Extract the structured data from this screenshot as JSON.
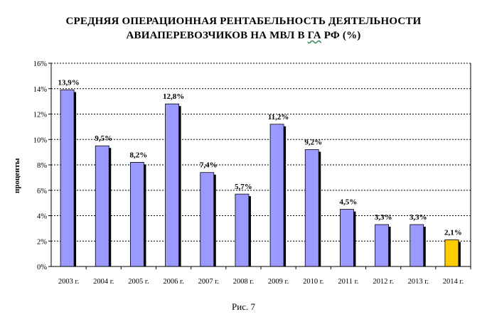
{
  "title_line1": "СРЕДНЯЯ ОПЕРАЦИОННАЯ РЕНТАБЕЛЬНОСТЬ ДЕЯТЕЛЬНОСТИ",
  "title_line2_pre": "АВИАПЕРЕВОЗЧИКОВ НА МВЛ В ",
  "title_line2_mark": "ГА",
  "title_line2_post": " РФ (%)",
  "caption": "Рис. 7",
  "colors": {
    "bar": "#9999ff",
    "highlight": "#ffcc00",
    "shadow": "#000000",
    "grid": "#000000"
  },
  "chart_data": {
    "type": "bar",
    "ylabel": "проценты",
    "categories": [
      "2003 г.",
      "2004 г.",
      "2005 г.",
      "2006 г.",
      "2007 г.",
      "2008 г.",
      "2009 г.",
      "2010 г.",
      "2011 г.",
      "2012 г.",
      "2013 г.",
      "2014 г."
    ],
    "values": [
      13.9,
      9.5,
      8.2,
      12.8,
      7.4,
      5.7,
      11.2,
      9.2,
      4.5,
      3.3,
      3.3,
      2.1
    ],
    "data_labels": [
      "13,9%",
      "9,5%",
      "8,2%",
      "12,8%",
      "7,4%",
      "5,7%",
      "11,2%",
      "9,2%",
      "4,5%",
      "3,3%",
      "3,3%",
      "2,1%"
    ],
    "highlight_index": 11,
    "ylim": [
      0,
      16
    ],
    "yticks": [
      0,
      2,
      4,
      6,
      8,
      10,
      12,
      14,
      16
    ],
    "ytick_labels": [
      "0%",
      "2%",
      "4%",
      "6%",
      "8%",
      "10%",
      "12%",
      "14%",
      "16%"
    ],
    "grid": true
  }
}
